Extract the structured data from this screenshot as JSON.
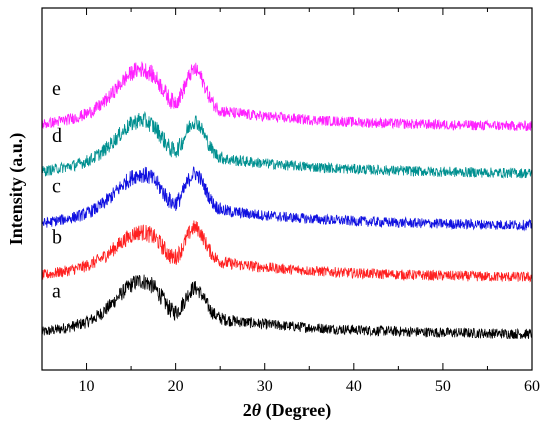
{
  "chart_data": {
    "type": "line",
    "xlabel_prefix": "2",
    "xlabel_var": "θ",
    "xlabel_suffix": " (Degree)",
    "ylabel": "Intensity (a.u.)",
    "xlim": [
      5,
      60
    ],
    "xticks": [
      "10",
      "20",
      "30",
      "40",
      "50",
      "60"
    ],
    "ylim": [
      0,
      100
    ],
    "y_tick_labels_shown": false,
    "grid": false,
    "legend": "none (series labeled directly at left of each curve)",
    "series": [
      {
        "name": "a",
        "color": "#000000",
        "baseline": 8,
        "start": 5,
        "peak1": 17,
        "peak2": 13,
        "tail": 0.5
      },
      {
        "name": "b",
        "color": "#ff2020",
        "baseline": 23,
        "start": 7,
        "peak1": 13,
        "peak2": 15,
        "tail": 0.5
      },
      {
        "name": "c",
        "color": "#1010e0",
        "baseline": 37,
        "start": 8,
        "peak1": 16,
        "peak2": 16,
        "tail": 0.5
      },
      {
        "name": "d",
        "color": "#009090",
        "baseline": 51,
        "start": 9,
        "peak1": 17,
        "peak2": 16,
        "tail": 0.5
      },
      {
        "name": "e",
        "color": "#ff20ff",
        "baseline": 64,
        "start": 9,
        "peak1": 19,
        "peak2": 18,
        "tail": 0.5
      }
    ]
  }
}
